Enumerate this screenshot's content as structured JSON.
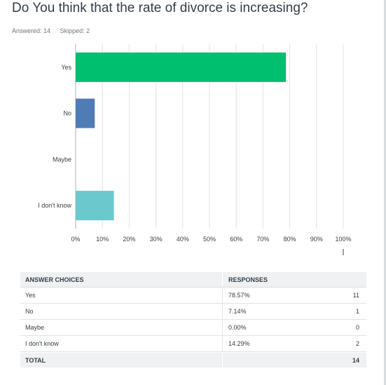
{
  "question": {
    "title": "Do You think that the rate of divorce is increasing?",
    "answered": "Answered: 14",
    "skipped": "Skipped: 2"
  },
  "colors": {
    "yes": "#00bf6f",
    "no": "#507cb6",
    "maybe": "#f9be00",
    "dont_know": "#6bc8cd",
    "grid": "#e0e3e5",
    "axis": "#a8b2b7"
  },
  "chart_data": {
    "type": "bar",
    "orientation": "horizontal",
    "categories": [
      "Yes",
      "No",
      "Maybe",
      "I don't know"
    ],
    "values": [
      78.57,
      7.14,
      0.0,
      14.29
    ],
    "xlim": [
      0,
      100
    ],
    "xticks": [
      "0%",
      "10%",
      "20%",
      "30%",
      "40%",
      "50%",
      "60%",
      "70%",
      "80%",
      "90%",
      "100%"
    ],
    "grid": true,
    "title": "",
    "xlabel": "",
    "ylabel": ""
  },
  "table": {
    "headers": [
      "ANSWER CHOICES",
      "RESPONSES"
    ],
    "rows": [
      {
        "choice": "Yes",
        "percent": "78.57%",
        "count": "11"
      },
      {
        "choice": "No",
        "percent": "7.14%",
        "count": "1"
      },
      {
        "choice": "Maybe",
        "percent": "0.00%",
        "count": "0"
      },
      {
        "choice": "I don't know",
        "percent": "14.29%",
        "count": "2"
      }
    ],
    "total_label": "TOTAL",
    "total_count": "14"
  }
}
